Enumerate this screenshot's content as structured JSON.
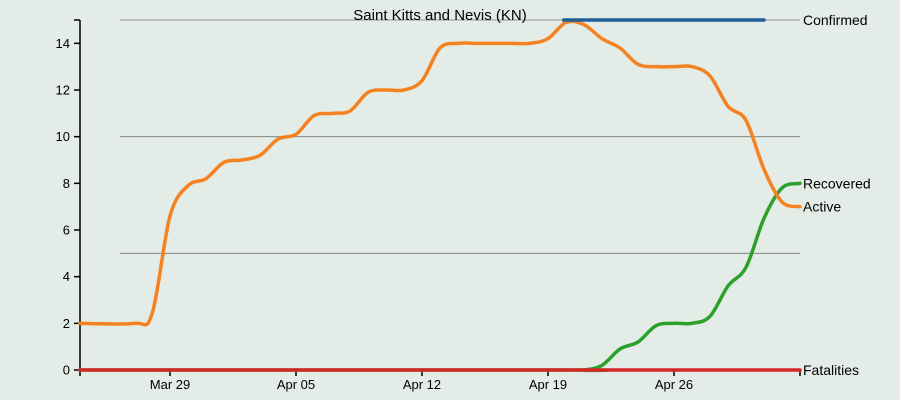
{
  "chart_data": {
    "type": "line",
    "title": "Saint Kitts and Nevis (KN)",
    "xlabel": "",
    "ylabel": "",
    "x_start": "2020-03-24",
    "x_ticks": [
      {
        "date": "2020-03-29",
        "label": "Mar 29"
      },
      {
        "date": "2020-04-05",
        "label": "Apr 05"
      },
      {
        "date": "2020-04-12",
        "label": "Apr 12"
      },
      {
        "date": "2020-04-19",
        "label": "Apr 19"
      },
      {
        "date": "2020-04-26",
        "label": "Apr 26"
      }
    ],
    "x_range": [
      "2020-03-24",
      "2020-05-01"
    ],
    "y_range": [
      0,
      15
    ],
    "y_ticks": [
      0,
      2,
      4,
      6,
      8,
      10,
      12,
      14
    ],
    "grid_y": [
      5,
      10,
      15
    ],
    "series": [
      {
        "name": "Confirmed",
        "color": "#1f5f99",
        "points": [
          [
            "2020-04-20",
            15
          ],
          [
            "2020-04-21",
            15
          ],
          [
            "2020-05-01",
            15
          ]
        ]
      },
      {
        "name": "Recovered",
        "color": "#2ca02c",
        "points": [
          [
            "2020-03-24",
            0
          ],
          [
            "2020-04-20",
            0
          ],
          [
            "2020-04-21",
            0
          ],
          [
            "2020-04-22",
            0.2
          ],
          [
            "2020-04-23",
            0.9
          ],
          [
            "2020-04-24",
            1.2
          ],
          [
            "2020-04-25",
            1.9
          ],
          [
            "2020-04-26",
            2
          ],
          [
            "2020-04-27",
            2
          ],
          [
            "2020-04-28",
            2.3
          ],
          [
            "2020-04-29",
            3.6
          ],
          [
            "2020-04-30",
            4.4
          ],
          [
            "2020-05-01",
            6.5
          ],
          [
            "2020-05-02",
            7.8
          ],
          [
            "2020-05-03",
            8
          ]
        ]
      },
      {
        "name": "Active",
        "color": "#f58220",
        "points": [
          [
            "2020-03-24",
            2
          ],
          [
            "2020-03-27",
            2
          ],
          [
            "2020-03-28",
            2.4
          ],
          [
            "2020-03-29",
            6.6
          ],
          [
            "2020-03-30",
            7.9
          ],
          [
            "2020-03-31",
            8.2
          ],
          [
            "2020-04-01",
            8.9
          ],
          [
            "2020-04-02",
            9
          ],
          [
            "2020-04-03",
            9.2
          ],
          [
            "2020-04-04",
            9.9
          ],
          [
            "2020-04-05",
            10.1
          ],
          [
            "2020-04-06",
            10.9
          ],
          [
            "2020-04-07",
            11
          ],
          [
            "2020-04-08",
            11.1
          ],
          [
            "2020-04-09",
            11.9
          ],
          [
            "2020-04-10",
            12
          ],
          [
            "2020-04-11",
            12
          ],
          [
            "2020-04-12",
            12.4
          ],
          [
            "2020-04-13",
            13.8
          ],
          [
            "2020-04-14",
            14
          ],
          [
            "2020-04-15",
            14
          ],
          [
            "2020-04-16",
            14
          ],
          [
            "2020-04-17",
            14
          ],
          [
            "2020-04-18",
            14
          ],
          [
            "2020-04-19",
            14.2
          ],
          [
            "2020-04-20",
            14.9
          ],
          [
            "2020-04-21",
            14.8
          ],
          [
            "2020-04-22",
            14.2
          ],
          [
            "2020-04-23",
            13.8
          ],
          [
            "2020-04-24",
            13.1
          ],
          [
            "2020-04-25",
            13
          ],
          [
            "2020-04-26",
            13
          ],
          [
            "2020-04-27",
            13
          ],
          [
            "2020-04-28",
            12.6
          ],
          [
            "2020-04-29",
            11.3
          ],
          [
            "2020-04-30",
            10.7
          ],
          [
            "2020-05-01",
            8.6
          ],
          [
            "2020-05-02",
            7.2
          ],
          [
            "2020-05-03",
            7
          ]
        ]
      },
      {
        "name": "Fatalities",
        "color": "#d62728",
        "points": [
          [
            "2020-03-24",
            0
          ],
          [
            "2020-05-03",
            0
          ]
        ]
      }
    ],
    "end_labels": [
      "Confirmed",
      "Recovered",
      "Active",
      "Fatalities"
    ],
    "grid": true,
    "legend": "end-of-line labels"
  }
}
